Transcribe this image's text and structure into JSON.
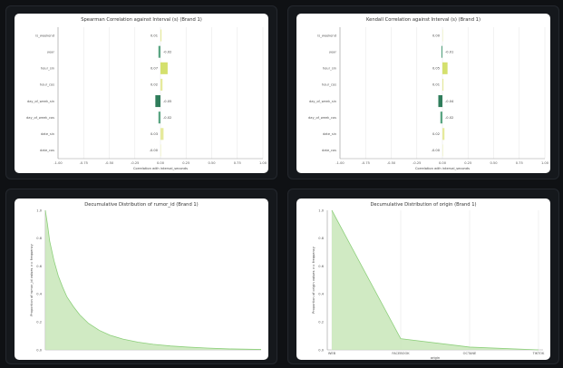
{
  "colors": {
    "page_bg": "#0f1114",
    "card_bg": "#15181c",
    "bar_pos_strong": "#d4e06d",
    "bar_pos_weak": "#e6ea9c",
    "bar_neg_strong": "#2f7d5b",
    "bar_neg_weak": "#5aa583",
    "area_fill": "#c8e6b8",
    "area_line": "#8ccf7a"
  },
  "chart_data": [
    {
      "type": "bar",
      "orientation": "horizontal",
      "title": "Spearman Correlation against Interval (s) (Brand 1)",
      "xlabel": "Correlation with interval_seconds",
      "categories": [
        "is_weekend",
        "year",
        "hour_sin",
        "hour_cos",
        "day_of_week_sin",
        "day_of_week_cos",
        "date_sin",
        "date_cos"
      ],
      "values": [
        0.01,
        -0.02,
        0.07,
        0.02,
        -0.05,
        -0.02,
        0.03,
        -0.0
      ],
      "value_labels": [
        "0.01",
        "-0.02",
        "0.07",
        "0.02",
        "-0.05",
        "-0.02",
        "0.03",
        "-0.00"
      ],
      "xlim": [
        -1.0,
        1.0
      ],
      "xticks": [
        "-1.00",
        "-0.75",
        "-0.50",
        "-0.25",
        "0.00",
        "0.25",
        "0.50",
        "0.75",
        "1.00"
      ]
    },
    {
      "type": "bar",
      "orientation": "horizontal",
      "title": "Kendall Correlation against Interval (s) (Brand 1)",
      "xlabel": "Correlation with interval_seconds",
      "categories": [
        "is_weekend",
        "year",
        "hour_sin",
        "hour_cos",
        "day_of_week_sin",
        "day_of_week_cos",
        "date_sin",
        "date_cos"
      ],
      "values": [
        0.0,
        -0.01,
        0.05,
        0.01,
        -0.04,
        -0.02,
        0.02,
        -0.0
      ],
      "value_labels": [
        "0.00",
        "-0.01",
        "0.05",
        "0.01",
        "-0.04",
        "-0.02",
        "0.02",
        "-0.00"
      ],
      "xlim": [
        -1.0,
        1.0
      ],
      "xticks": [
        "-1.00",
        "-0.75",
        "-0.50",
        "-0.25",
        "0.00",
        "0.25",
        "0.50",
        "0.75",
        "1.00"
      ]
    },
    {
      "type": "area",
      "title": "Decumulative Distribution of rumor_id (Brand 1)",
      "xlabel": "",
      "ylabel": "Proportion of rumor_id values >= frequency",
      "ylim": [
        0.0,
        1.0
      ],
      "yticks": [
        "0.0",
        "0.2",
        "0.4",
        "0.6",
        "0.8",
        "1.0"
      ],
      "x": [
        0,
        0.01,
        0.02,
        0.04,
        0.06,
        0.08,
        0.1,
        0.13,
        0.16,
        0.2,
        0.25,
        0.3,
        0.36,
        0.43,
        0.5,
        0.58,
        0.66,
        0.75,
        0.85,
        1.0
      ],
      "y": [
        1.0,
        0.9,
        0.78,
        0.64,
        0.53,
        0.45,
        0.38,
        0.31,
        0.25,
        0.19,
        0.14,
        0.105,
        0.077,
        0.055,
        0.04,
        0.028,
        0.02,
        0.013,
        0.007,
        0.003
      ]
    },
    {
      "type": "area",
      "title": "Decumulative Distribution of origin (Brand 1)",
      "xlabel": "origin",
      "ylabel": "Proportion of origin values >= frequency",
      "ylim": [
        0.0,
        1.0
      ],
      "yticks": [
        "0.0",
        "0.2",
        "0.4",
        "0.6",
        "0.8",
        "1.0"
      ],
      "categories": [
        "WEB",
        "FACEBOOK",
        "OCTANE",
        "TIKTOK"
      ],
      "values": [
        1.0,
        0.08,
        0.02,
        0.0
      ]
    }
  ]
}
